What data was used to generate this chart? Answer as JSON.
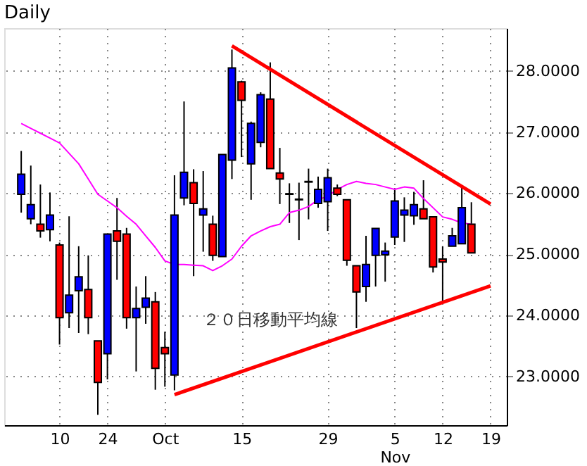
{
  "chart_data": {
    "type": "candlestick",
    "title": "Daily",
    "categories": [
      null,
      null,
      null,
      null,
      "10",
      null,
      null,
      null,
      null,
      "24",
      null,
      null,
      null,
      null,
      null,
      "Oct",
      null,
      null,
      null,
      null,
      null,
      null,
      null,
      "15",
      null,
      null,
      null,
      null,
      null,
      null,
      null,
      null,
      "29",
      null,
      null,
      null,
      null,
      null,
      null,
      "5\nNov",
      null,
      null,
      null,
      null,
      "12",
      null,
      null,
      null,
      null,
      "19"
    ],
    "ohlc": [
      [
        25.98,
        26.69,
        25.68,
        26.31
      ],
      [
        25.58,
        26.45,
        25.49,
        25.81
      ],
      [
        25.49,
        26.14,
        25.27,
        25.38
      ],
      [
        25.4,
        26.01,
        25.21,
        25.64
      ],
      [
        25.15,
        25.19,
        23.52,
        23.96
      ],
      [
        24.04,
        25.62,
        23.79,
        24.33
      ],
      [
        24.4,
        25.13,
        23.71,
        24.63
      ],
      [
        24.42,
        24.98,
        23.69,
        23.96
      ],
      [
        23.58,
        23.58,
        22.37,
        22.9
      ],
      [
        23.37,
        25.33,
        22.95,
        25.33
      ],
      [
        25.38,
        25.92,
        24.58,
        25.21
      ],
      [
        25.33,
        25.43,
        23.78,
        23.96
      ],
      [
        23.96,
        24.47,
        23.08,
        24.11
      ],
      [
        24.13,
        24.64,
        23.86,
        24.28
      ],
      [
        24.22,
        24.38,
        22.78,
        23.13
      ],
      [
        23.47,
        23.73,
        22.83,
        23.37
      ],
      [
        23.02,
        26.29,
        22.77,
        25.64
      ],
      [
        25.92,
        27.5,
        25.8,
        26.34
      ],
      [
        26.17,
        26.39,
        24.64,
        25.83
      ],
      [
        25.64,
        26.36,
        25.04,
        25.74
      ],
      [
        25.49,
        25.63,
        24.89,
        24.98
      ],
      [
        24.96,
        26.63,
        24.96,
        26.63
      ],
      [
        26.54,
        28.35,
        26.23,
        28.05
      ],
      [
        27.82,
        27.84,
        26.59,
        27.52
      ],
      [
        26.48,
        27.17,
        25.89,
        27.14
      ],
      [
        26.83,
        27.65,
        26.75,
        27.61
      ],
      [
        27.54,
        28.14,
        26.4,
        26.4
      ],
      [
        26.33,
        26.74,
        25.82,
        26.23
      ],
      [
        25.99,
        26.16,
        25.51,
        25.98
      ],
      [
        25.9,
        26.17,
        25.23,
        25.89
      ],
      [
        26.19,
        26.4,
        25.57,
        26.18
      ],
      [
        25.83,
        26.27,
        25.76,
        26.06
      ],
      [
        25.86,
        26.4,
        25.38,
        26.25
      ],
      [
        26.08,
        26.14,
        25.95,
        25.98
      ],
      [
        25.89,
        25.89,
        24.81,
        24.9
      ],
      [
        24.81,
        24.81,
        23.79,
        24.38
      ],
      [
        24.47,
        25.3,
        24.22,
        24.83
      ],
      [
        24.98,
        25.42,
        24.47,
        25.42
      ],
      [
        24.99,
        25.19,
        24.55,
        25.05
      ],
      [
        25.28,
        26.08,
        25.15,
        25.87
      ],
      [
        25.64,
        25.93,
        25.2,
        25.72
      ],
      [
        25.63,
        26.02,
        25.48,
        25.81
      ],
      [
        25.74,
        26.21,
        25.58,
        25.58
      ],
      [
        25.61,
        25.61,
        24.7,
        24.79
      ],
      [
        24.92,
        25.13,
        24.19,
        24.87
      ],
      [
        25.13,
        25.43,
        25.13,
        25.3
      ],
      [
        25.17,
        26.1,
        25.17,
        25.76
      ],
      [
        25.49,
        25.85,
        25.02,
        25.02
      ],
      null,
      null
    ],
    "colors": [
      "#0000ff",
      "#0000ff",
      "#ff0000",
      "#0000ff",
      "#ff0000",
      "#0000ff",
      "#0000ff",
      "#ff0000",
      "#ff0000",
      "#0000ff",
      "#ff0000",
      "#ff0000",
      "#0000ff",
      "#0000ff",
      "#ff0000",
      "#ff0000",
      "#0000ff",
      "#0000ff",
      "#ff0000",
      "#0000ff",
      "#ff0000",
      "#0000ff",
      "#0000ff",
      "#ff0000",
      "#0000ff",
      "#0000ff",
      "#ff0000",
      "#ff0000",
      "#ff0000",
      "#ff0000",
      "#ff0000",
      "#0000ff",
      "#0000ff",
      "#ff0000",
      "#ff0000",
      "#ff0000",
      "#0000ff",
      "#0000ff",
      "#0000ff",
      "#0000ff",
      "#0000ff",
      "#0000ff",
      "#ff0000",
      "#ff0000",
      "#ff0000",
      "#0000ff",
      "#0000ff",
      "#ff0000",
      null,
      null
    ],
    "series": [
      {
        "type": "line",
        "color": "#ff00ff",
        "values": [
          27.14,
          27.06,
          26.98,
          26.9,
          26.82,
          26.65,
          26.48,
          26.23,
          25.98,
          25.87,
          25.76,
          25.62,
          25.49,
          25.3,
          25.11,
          24.89,
          24.83,
          24.83,
          24.82,
          24.81,
          24.73,
          24.81,
          24.92,
          25.13,
          25.3,
          25.38,
          25.45,
          25.49,
          25.68,
          25.72,
          25.78,
          25.89,
          25.95,
          26.06,
          26.14,
          26.19,
          26.16,
          26.14,
          26.1,
          26.06,
          26.1,
          26.08,
          25.91,
          25.76,
          25.61,
          25.57,
          25.51,
          25.49,
          null,
          null
        ]
      },
      {
        "type": "line",
        "color": "#ff0000",
        "values": [
          null,
          null,
          null,
          null,
          null,
          null,
          null,
          null,
          null,
          null,
          null,
          null,
          null,
          null,
          null,
          null,
          null,
          null,
          null,
          null,
          null,
          null,
          28.41,
          null,
          null,
          null,
          null,
          null,
          null,
          null,
          null,
          null,
          null,
          null,
          null,
          null,
          null,
          null,
          null,
          null,
          null,
          null,
          null,
          null,
          null,
          null,
          null,
          null,
          null,
          25.82
        ]
      },
      {
        "type": "line",
        "color": "#ff0000",
        "values": [
          null,
          null,
          null,
          null,
          null,
          null,
          null,
          null,
          null,
          null,
          null,
          null,
          null,
          null,
          null,
          null,
          22.7,
          null,
          null,
          null,
          null,
          null,
          null,
          null,
          null,
          null,
          null,
          null,
          null,
          null,
          null,
          null,
          null,
          null,
          null,
          null,
          null,
          null,
          null,
          null,
          null,
          null,
          null,
          null,
          null,
          null,
          null,
          null,
          null,
          24.48
        ]
      }
    ],
    "ylim": [
      22.2,
      28.7
    ],
    "yticks": [
      {
        "value": 23,
        "label": "23.0000"
      },
      {
        "value": 24,
        "label": "24.0000"
      },
      {
        "value": 25,
        "label": "25.0000"
      },
      {
        "value": 26,
        "label": "26.0000"
      },
      {
        "value": 27,
        "label": "27.0000"
      },
      {
        "value": 28,
        "label": "28.0000"
      }
    ],
    "grid": true,
    "annotations": [
      "２０日移動平均線"
    ]
  }
}
